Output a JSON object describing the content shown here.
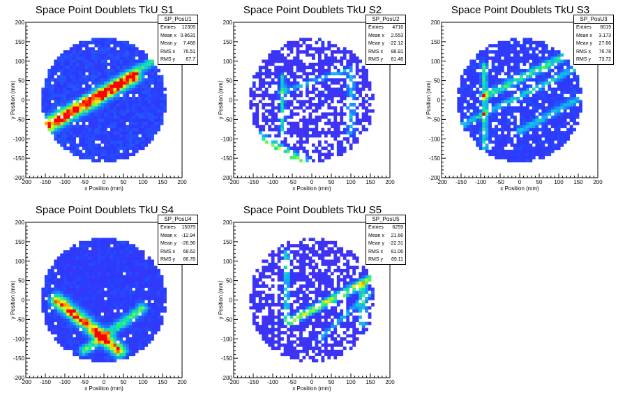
{
  "chart_data": [
    {
      "type": "heatmap",
      "title": "Space Point Doublets TkU S1",
      "xlabel": "x Position (mm)",
      "ylabel": "y Position (mm)",
      "xlim": [
        -200,
        200
      ],
      "ylim": [
        -200,
        200
      ],
      "xticks": [
        "-200",
        "-150",
        "-100",
        "-50",
        "0",
        "50",
        "100",
        "150",
        "200"
      ],
      "yticks": [
        "-200",
        "-150",
        "-100",
        "-50",
        "0",
        "50",
        "100",
        "150",
        "200"
      ],
      "stats": {
        "name": "SP_PosU1",
        "rows": [
          {
            "label": "Entries",
            "value": "12309"
          },
          {
            "label": "Mean x",
            "value": "0.8631"
          },
          {
            "label": "Mean y",
            "value": "7.468"
          },
          {
            "label": "RMS x",
            "value": "76.51"
          },
          {
            "label": "RMS y",
            "value": "67.7"
          }
        ]
      },
      "detector_radius": 160,
      "bands": [
        {
          "p1": [
            -160,
            -80
          ],
          "p2": [
            80,
            60
          ],
          "width": 10,
          "peak": 0.9
        },
        {
          "p1": [
            -160,
            -60
          ],
          "p2": [
            160,
            120
          ],
          "width": 7,
          "peak": 0.45
        }
      ],
      "seed": 11,
      "base": 0.12,
      "holes": 0.04
    },
    {
      "type": "heatmap",
      "title": "Space Point Doublets TkU S2",
      "xlabel": "x Position (mm)",
      "ylabel": "y Position (mm)",
      "xlim": [
        -200,
        200
      ],
      "ylim": [
        -200,
        200
      ],
      "xticks": [
        "-200",
        "-150",
        "-100",
        "-50",
        "0",
        "50",
        "100",
        "150",
        "200"
      ],
      "yticks": [
        "-200",
        "-150",
        "-100",
        "-50",
        "0",
        "50",
        "100",
        "150",
        "200"
      ],
      "stats": {
        "name": "SP_PosU2",
        "rows": [
          {
            "label": "Entries",
            "value": "4716"
          },
          {
            "label": "Mean x",
            "value": "2.553"
          },
          {
            "label": "Mean y",
            "value": "-22.12"
          },
          {
            "label": "RMS x",
            "value": "88.91"
          },
          {
            "label": "RMS y",
            "value": "81.48"
          }
        ]
      },
      "detector_radius": 160,
      "bands": [
        {
          "p1": [
            -160,
            -80
          ],
          "p2": [
            -20,
            -160
          ],
          "width": 8,
          "peak": 0.6
        },
        {
          "p1": [
            -75,
            -80
          ],
          "p2": [
            -75,
            60
          ],
          "width": 5,
          "peak": 0.4
        },
        {
          "p1": [
            -80,
            20
          ],
          "p2": [
            100,
            80
          ],
          "width": 5,
          "peak": 0.3
        },
        {
          "p1": [
            100,
            -80
          ],
          "p2": [
            100,
            60
          ],
          "width": 8,
          "peak": 0.3
        }
      ],
      "seed": 23,
      "base": 0.05,
      "holes": 0.35
    },
    {
      "type": "heatmap",
      "title": "Space Point Doublets TkU S3",
      "xlabel": "x Position (mm)",
      "ylabel": "y Position (mm)",
      "xlim": [
        -200,
        200
      ],
      "ylim": [
        -200,
        200
      ],
      "xticks": [
        "-200",
        "-150",
        "-100",
        "-50",
        "0",
        "50",
        "100",
        "150",
        "200"
      ],
      "yticks": [
        "-200",
        "-150",
        "-100",
        "-50",
        "0",
        "50",
        "100",
        "150",
        "200"
      ],
      "stats": {
        "name": "SP_PosU3",
        "rows": [
          {
            "label": "Entries",
            "value": "8019"
          },
          {
            "label": "Mean x",
            "value": "3.173"
          },
          {
            "label": "Mean y",
            "value": "27.66"
          },
          {
            "label": "RMS x",
            "value": "76.78"
          },
          {
            "label": "RMS y",
            "value": "73.72"
          }
        ]
      },
      "detector_radius": 160,
      "bands": [
        {
          "p1": [
            -90,
            -120
          ],
          "p2": [
            -90,
            90
          ],
          "width": 5,
          "peak": 0.45
        },
        {
          "p1": [
            -90,
            10
          ],
          "p2": [
            110,
            110
          ],
          "width": 7,
          "peak": 0.45
        },
        {
          "p1": [
            -160,
            -70
          ],
          "p2": [
            160,
            90
          ],
          "width": 5,
          "peak": 0.35
        },
        {
          "p1": [
            0,
            -80
          ],
          "p2": [
            160,
            10
          ],
          "width": 6,
          "peak": 0.3
        }
      ],
      "seed": 37,
      "base": 0.1,
      "holes": 0.15
    },
    {
      "type": "heatmap",
      "title": "Space Point Doublets TkU S4",
      "xlabel": "x Position (mm)",
      "ylabel": "y Position (mm)",
      "xlim": [
        -200,
        200
      ],
      "ylim": [
        -200,
        200
      ],
      "xticks": [
        "-200",
        "-150",
        "-100",
        "-50",
        "0",
        "50",
        "100",
        "150",
        "200"
      ],
      "yticks": [
        "-200",
        "-150",
        "-100",
        "-50",
        "0",
        "50",
        "100",
        "150",
        "200"
      ],
      "stats": {
        "name": "SP_PosU4",
        "rows": [
          {
            "label": "Entries",
            "value": "15079"
          },
          {
            "label": "Mean x",
            "value": "-12.94"
          },
          {
            "label": "Mean y",
            "value": "-26.96"
          },
          {
            "label": "RMS x",
            "value": "68.62"
          },
          {
            "label": "RMS y",
            "value": "66.78"
          }
        ]
      },
      "detector_radius": 160,
      "bands": [
        {
          "p1": [
            -120,
            0
          ],
          "p2": [
            40,
            -130
          ],
          "width": 11,
          "peak": 0.9
        },
        {
          "p1": [
            -50,
            -130
          ],
          "p2": [
            100,
            -20
          ],
          "width": 8,
          "peak": 0.5
        }
      ],
      "seed": 51,
      "base": 0.1,
      "holes": 0.03
    },
    {
      "type": "heatmap",
      "title": "Space Point Doublets TkU S5",
      "xlabel": "x Position (mm)",
      "ylabel": "y Position (mm)",
      "xlim": [
        -200,
        200
      ],
      "ylim": [
        -200,
        200
      ],
      "xticks": [
        "-200",
        "-150",
        "-100",
        "-50",
        "0",
        "50",
        "100",
        "150",
        "200"
      ],
      "yticks": [
        "-200",
        "-150",
        "-100",
        "-50",
        "0",
        "50",
        "100",
        "150",
        "200"
      ],
      "stats": {
        "name": "SP_PosU5",
        "rows": [
          {
            "label": "Entries",
            "value": "6259"
          },
          {
            "label": "Mean x",
            "value": "21.66"
          },
          {
            "label": "Mean y",
            "value": "-22.31"
          },
          {
            "label": "RMS x",
            "value": "81.06"
          },
          {
            "label": "RMS y",
            "value": "69.11"
          }
        ]
      },
      "detector_radius": 160,
      "bands": [
        {
          "p1": [
            -55,
            -55
          ],
          "p2": [
            160,
            60
          ],
          "width": 7,
          "peak": 0.7
        },
        {
          "p1": [
            -65,
            -55
          ],
          "p2": [
            -65,
            120
          ],
          "width": 5,
          "peak": 0.45
        },
        {
          "p1": [
            130,
            -60
          ],
          "p2": [
            130,
            40
          ],
          "width": 8,
          "peak": 0.35
        },
        {
          "p1": [
            20,
            -100
          ],
          "p2": [
            150,
            20
          ],
          "width": 5,
          "peak": 0.3
        }
      ],
      "seed": 67,
      "base": 0.05,
      "holes": 0.3
    }
  ]
}
